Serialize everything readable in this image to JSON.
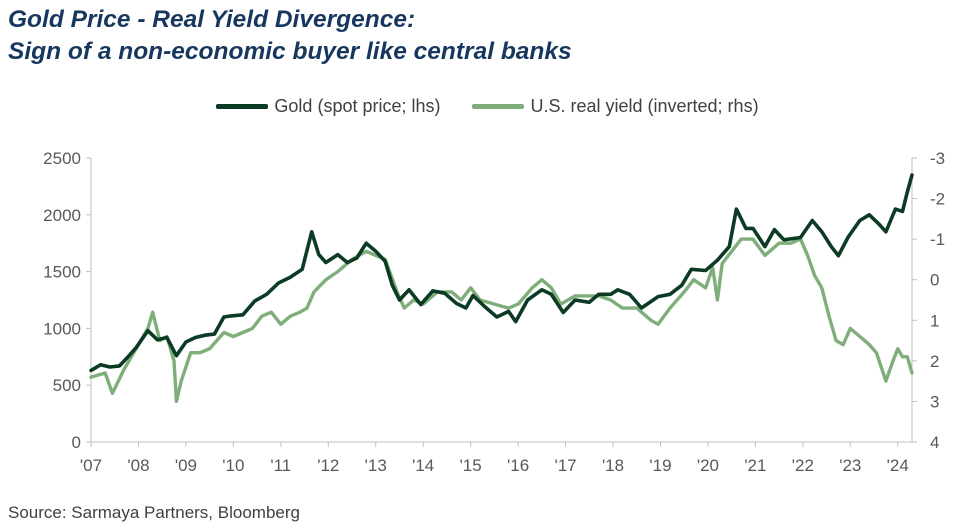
{
  "title": {
    "line1": "Gold Price - Real Yield Divergence:",
    "line2": "Sign of a non-economic buyer like central banks"
  },
  "source": "Source: Sarmaya Partners, Bloomberg",
  "colors": {
    "gold": "#0b3b24",
    "yield": "#7fae7a",
    "axis": "#bfbfbf",
    "title": "#17375e"
  },
  "chart_data": {
    "type": "line",
    "title": "Gold Price - Real Yield Divergence: Sign of a non-economic buyer like central banks",
    "legend_position": "top",
    "grid": false,
    "x_range": [
      2007.0,
      2024.3
    ],
    "x_ticks": [
      {
        "value": 2007,
        "label": "'07"
      },
      {
        "value": 2008,
        "label": "'08"
      },
      {
        "value": 2009,
        "label": "'09"
      },
      {
        "value": 2010,
        "label": "'10"
      },
      {
        "value": 2011,
        "label": "'11"
      },
      {
        "value": 2012,
        "label": "'12"
      },
      {
        "value": 2013,
        "label": "'13"
      },
      {
        "value": 2014,
        "label": "'14"
      },
      {
        "value": 2015,
        "label": "'15"
      },
      {
        "value": 2016,
        "label": "'16"
      },
      {
        "value": 2017,
        "label": "'17"
      },
      {
        "value": 2018,
        "label": "'18"
      },
      {
        "value": 2019,
        "label": "'19"
      },
      {
        "value": 2020,
        "label": "'20"
      },
      {
        "value": 2021,
        "label": "'21"
      },
      {
        "value": 2022,
        "label": "'22"
      },
      {
        "value": 2023,
        "label": "'23"
      },
      {
        "value": 2024,
        "label": "'24"
      }
    ],
    "y_left": {
      "range": [
        0,
        2500
      ],
      "ticks": [
        "0",
        "500",
        "1000",
        "1500",
        "2000",
        "2500"
      ]
    },
    "y_right": {
      "range": [
        4,
        -3
      ],
      "inverted": true,
      "ticks": [
        "4",
        "3",
        "2",
        "1",
        "0",
        "-1",
        "-2",
        "-3"
      ]
    },
    "series": [
      {
        "name": "Gold (spot price; lhs)",
        "axis": "left",
        "points": [
          [
            2007.0,
            630
          ],
          [
            2007.2,
            680
          ],
          [
            2007.4,
            660
          ],
          [
            2007.6,
            670
          ],
          [
            2007.8,
            760
          ],
          [
            2007.95,
            830
          ],
          [
            2008.2,
            980
          ],
          [
            2008.4,
            900
          ],
          [
            2008.6,
            920
          ],
          [
            2008.8,
            760
          ],
          [
            2009.0,
            880
          ],
          [
            2009.2,
            920
          ],
          [
            2009.4,
            940
          ],
          [
            2009.6,
            950
          ],
          [
            2009.8,
            1100
          ],
          [
            2009.95,
            1110
          ],
          [
            2010.2,
            1120
          ],
          [
            2010.45,
            1240
          ],
          [
            2010.7,
            1300
          ],
          [
            2010.95,
            1400
          ],
          [
            2011.2,
            1450
          ],
          [
            2011.45,
            1520
          ],
          [
            2011.65,
            1850
          ],
          [
            2011.8,
            1650
          ],
          [
            2011.95,
            1580
          ],
          [
            2012.2,
            1650
          ],
          [
            2012.4,
            1580
          ],
          [
            2012.6,
            1620
          ],
          [
            2012.8,
            1750
          ],
          [
            2013.0,
            1680
          ],
          [
            2013.2,
            1590
          ],
          [
            2013.35,
            1380
          ],
          [
            2013.5,
            1250
          ],
          [
            2013.7,
            1340
          ],
          [
            2013.95,
            1210
          ],
          [
            2014.2,
            1330
          ],
          [
            2014.45,
            1310
          ],
          [
            2014.7,
            1220
          ],
          [
            2014.9,
            1180
          ],
          [
            2015.05,
            1290
          ],
          [
            2015.3,
            1190
          ],
          [
            2015.55,
            1100
          ],
          [
            2015.8,
            1150
          ],
          [
            2015.95,
            1060
          ],
          [
            2016.2,
            1250
          ],
          [
            2016.5,
            1340
          ],
          [
            2016.7,
            1300
          ],
          [
            2016.95,
            1140
          ],
          [
            2017.2,
            1250
          ],
          [
            2017.5,
            1230
          ],
          [
            2017.7,
            1300
          ],
          [
            2017.95,
            1300
          ],
          [
            2018.1,
            1340
          ],
          [
            2018.35,
            1300
          ],
          [
            2018.6,
            1180
          ],
          [
            2018.95,
            1280
          ],
          [
            2019.2,
            1300
          ],
          [
            2019.45,
            1380
          ],
          [
            2019.65,
            1520
          ],
          [
            2019.95,
            1510
          ],
          [
            2020.2,
            1600
          ],
          [
            2020.45,
            1720
          ],
          [
            2020.6,
            2050
          ],
          [
            2020.8,
            1880
          ],
          [
            2020.95,
            1880
          ],
          [
            2021.2,
            1720
          ],
          [
            2021.4,
            1870
          ],
          [
            2021.6,
            1780
          ],
          [
            2021.95,
            1800
          ],
          [
            2022.2,
            1950
          ],
          [
            2022.4,
            1850
          ],
          [
            2022.6,
            1720
          ],
          [
            2022.75,
            1640
          ],
          [
            2022.95,
            1800
          ],
          [
            2023.2,
            1950
          ],
          [
            2023.4,
            2000
          ],
          [
            2023.6,
            1920
          ],
          [
            2023.75,
            1850
          ],
          [
            2023.95,
            2050
          ],
          [
            2024.1,
            2030
          ],
          [
            2024.2,
            2200
          ],
          [
            2024.3,
            2350
          ]
        ]
      },
      {
        "name": "U.S. real yield (inverted; rhs)",
        "axis": "right",
        "points": [
          [
            2007.0,
            2.4
          ],
          [
            2007.3,
            2.3
          ],
          [
            2007.45,
            2.8
          ],
          [
            2007.7,
            2.2
          ],
          [
            2007.95,
            1.7
          ],
          [
            2008.2,
            1.2
          ],
          [
            2008.3,
            0.8
          ],
          [
            2008.45,
            1.5
          ],
          [
            2008.6,
            1.4
          ],
          [
            2008.75,
            2.0
          ],
          [
            2008.8,
            3.0
          ],
          [
            2008.9,
            2.5
          ],
          [
            2009.1,
            1.8
          ],
          [
            2009.3,
            1.8
          ],
          [
            2009.5,
            1.7
          ],
          [
            2009.8,
            1.3
          ],
          [
            2010.0,
            1.4
          ],
          [
            2010.2,
            1.3
          ],
          [
            2010.4,
            1.2
          ],
          [
            2010.6,
            0.9
          ],
          [
            2010.8,
            0.8
          ],
          [
            2011.0,
            1.1
          ],
          [
            2011.2,
            0.9
          ],
          [
            2011.4,
            0.8
          ],
          [
            2011.55,
            0.7
          ],
          [
            2011.7,
            0.3
          ],
          [
            2011.95,
            0.0
          ],
          [
            2012.2,
            -0.2
          ],
          [
            2012.5,
            -0.5
          ],
          [
            2012.8,
            -0.7
          ],
          [
            2013.0,
            -0.6
          ],
          [
            2013.2,
            -0.5
          ],
          [
            2013.45,
            0.3
          ],
          [
            2013.6,
            0.7
          ],
          [
            2013.8,
            0.5
          ],
          [
            2014.0,
            0.6
          ],
          [
            2014.3,
            0.3
          ],
          [
            2014.6,
            0.3
          ],
          [
            2014.8,
            0.5
          ],
          [
            2015.0,
            0.2
          ],
          [
            2015.2,
            0.5
          ],
          [
            2015.5,
            0.6
          ],
          [
            2015.8,
            0.7
          ],
          [
            2016.0,
            0.6
          ],
          [
            2016.3,
            0.2
          ],
          [
            2016.5,
            0.0
          ],
          [
            2016.7,
            0.2
          ],
          [
            2016.9,
            0.6
          ],
          [
            2017.2,
            0.4
          ],
          [
            2017.5,
            0.4
          ],
          [
            2017.7,
            0.4
          ],
          [
            2017.95,
            0.5
          ],
          [
            2018.2,
            0.7
          ],
          [
            2018.5,
            0.7
          ],
          [
            2018.8,
            1.0
          ],
          [
            2018.95,
            1.1
          ],
          [
            2019.2,
            0.7
          ],
          [
            2019.5,
            0.3
          ],
          [
            2019.7,
            0.0
          ],
          [
            2019.95,
            0.2
          ],
          [
            2020.1,
            -0.3
          ],
          [
            2020.2,
            0.5
          ],
          [
            2020.3,
            -0.4
          ],
          [
            2020.5,
            -0.7
          ],
          [
            2020.7,
            -1.0
          ],
          [
            2020.95,
            -1.0
          ],
          [
            2021.2,
            -0.6
          ],
          [
            2021.5,
            -0.9
          ],
          [
            2021.75,
            -0.9
          ],
          [
            2021.95,
            -1.0
          ],
          [
            2022.1,
            -0.6
          ],
          [
            2022.25,
            -0.1
          ],
          [
            2022.4,
            0.2
          ],
          [
            2022.55,
            0.9
          ],
          [
            2022.7,
            1.5
          ],
          [
            2022.85,
            1.6
          ],
          [
            2023.0,
            1.2
          ],
          [
            2023.2,
            1.4
          ],
          [
            2023.4,
            1.6
          ],
          [
            2023.55,
            1.8
          ],
          [
            2023.75,
            2.5
          ],
          [
            2023.9,
            2.0
          ],
          [
            2024.0,
            1.7
          ],
          [
            2024.1,
            1.9
          ],
          [
            2024.2,
            1.9
          ],
          [
            2024.3,
            2.3
          ]
        ]
      }
    ]
  }
}
